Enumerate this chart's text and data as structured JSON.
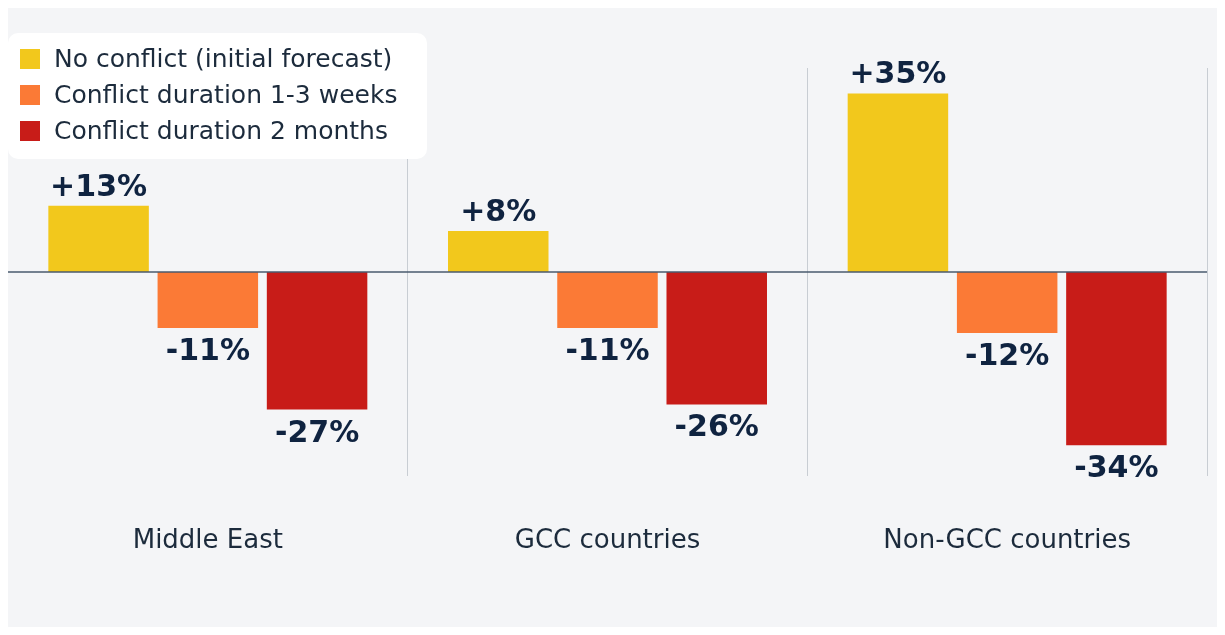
{
  "chart_data": {
    "type": "bar",
    "categories": [
      "Middle East",
      "GCC countries",
      "Non-GCC countries"
    ],
    "series": [
      {
        "name": "No conflict (initial forecast)",
        "color": "#f2c81c",
        "values": [
          13,
          8,
          35
        ],
        "value_labels": [
          "+13%",
          "+8%",
          "+35%"
        ]
      },
      {
        "name": "Conflict duration 1-3 weeks",
        "color": "#fb7a36",
        "values": [
          -11,
          -11,
          -12
        ],
        "value_labels": [
          "-11%",
          "-11%",
          "-12%"
        ]
      },
      {
        "name": "Conflict duration 2 months",
        "color": "#c81c18",
        "values": [
          -27,
          -26,
          -34
        ],
        "value_labels": [
          "-27%",
          "-26%",
          "-34%"
        ]
      }
    ],
    "grid": "x",
    "legend": "top left"
  }
}
